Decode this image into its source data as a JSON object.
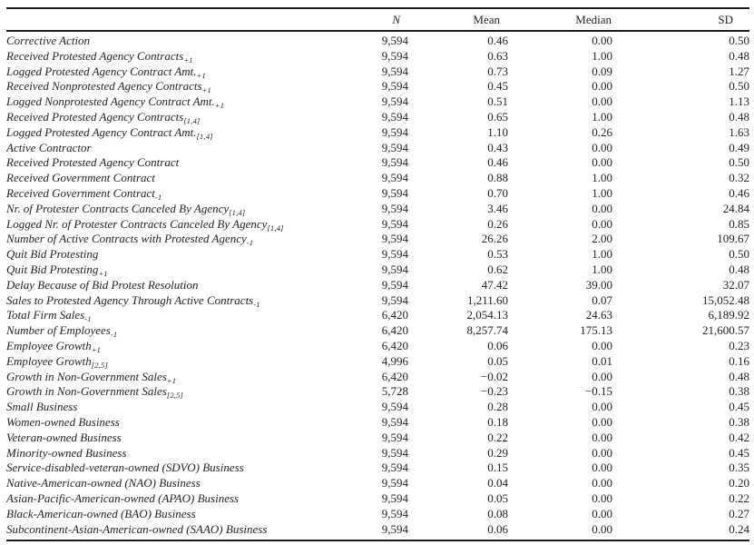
{
  "page": {
    "background": "#ffffff",
    "text_color": "#242424",
    "rule_color": "#1c1c1c"
  },
  "table": {
    "columns": [
      "N",
      "Mean",
      "Median",
      "SD"
    ],
    "rows": [
      {
        "label": "Corrective Action",
        "sub": "",
        "n": "9,594",
        "mean": "0.46",
        "median": "0.00",
        "sd": "0.50"
      },
      {
        "label": "Received Protested Agency Contracts",
        "sub": "+1",
        "n": "9,594",
        "mean": "0.63",
        "median": "1.00",
        "sd": "0.48"
      },
      {
        "label": "Logged Protested Agency Contract Amt.",
        "sub": "+1",
        "n": "9,594",
        "mean": "0.73",
        "median": "0.09",
        "sd": "1.27"
      },
      {
        "label": "Received Nonprotested Agency Contracts",
        "sub": "+1",
        "n": "9,594",
        "mean": "0.45",
        "median": "0.00",
        "sd": "0.50"
      },
      {
        "label": "Logged Nonprotested Agency Contract Amt.",
        "sub": "+1",
        "n": "9,594",
        "mean": "0.51",
        "median": "0.00",
        "sd": "1.13"
      },
      {
        "label": "Received Protested Agency Contracts",
        "sub": "[1,4]",
        "n": "9,594",
        "mean": "0.65",
        "median": "1.00",
        "sd": "0.48"
      },
      {
        "label": "Logged Protested Agency Contract Amt.",
        "sub": "[1,4]",
        "n": "9,594",
        "mean": "1.10",
        "median": "0.26",
        "sd": "1.63"
      },
      {
        "label": "Active Contractor",
        "sub": "",
        "n": "9,594",
        "mean": "0.43",
        "median": "0.00",
        "sd": "0.49"
      },
      {
        "label": "Received Protested Agency Contract",
        "sub": "",
        "n": "9,594",
        "mean": "0.46",
        "median": "0.00",
        "sd": "0.50"
      },
      {
        "label": "Received Government Contract",
        "sub": "",
        "n": "9,594",
        "mean": "0.88",
        "median": "1.00",
        "sd": "0.32"
      },
      {
        "label": "Received Government Contract",
        "sub": "-1",
        "n": "9,594",
        "mean": "0.70",
        "median": "1.00",
        "sd": "0.46"
      },
      {
        "label": "Nr. of Protester Contracts Canceled By Agency",
        "sub": "[1,4]",
        "n": "9,594",
        "mean": "3.46",
        "median": "0.00",
        "sd": "24.84"
      },
      {
        "label": "Logged Nr. of Protester Contracts Canceled By Agency",
        "sub": "[1,4]",
        "n": "9,594",
        "mean": "0.26",
        "median": "0.00",
        "sd": "0.85"
      },
      {
        "label": "Number of Active Contracts with Protested Agency",
        "sub": "-1",
        "n": "9,594",
        "mean": "26.26",
        "median": "2.00",
        "sd": "109.67"
      },
      {
        "label": "Quit Bid Protesting",
        "sub": "",
        "n": "9,594",
        "mean": "0.53",
        "median": "1.00",
        "sd": "0.50"
      },
      {
        "label": "Quit Bid Protesting",
        "sub": "+1",
        "n": "9,594",
        "mean": "0.62",
        "median": "1.00",
        "sd": "0.48"
      },
      {
        "label": "Delay Because of Bid Protest Resolution",
        "sub": "",
        "n": "9,594",
        "mean": "47.42",
        "median": "39.00",
        "sd": "32.07"
      },
      {
        "label": "Sales to Protested Agency Through Active Contracts",
        "sub": "-1",
        "n": "9,594",
        "mean": "1,211.60",
        "median": "0.07",
        "sd": "15,052.48"
      },
      {
        "label": "Total Firm Sales",
        "sub": "-1",
        "n": "6,420",
        "mean": "2,054.13",
        "median": "24.63",
        "sd": "6,189.92"
      },
      {
        "label": "Number of Employees",
        "sub": "-1",
        "n": "6,420",
        "mean": "8,257.74",
        "median": "175.13",
        "sd": "21,600.57"
      },
      {
        "label": "Employee Growth",
        "sub": "+1",
        "n": "6,420",
        "mean": "0.06",
        "median": "0.00",
        "sd": "0.23"
      },
      {
        "label": "Employee Growth",
        "sub": "[2,5]",
        "n": "4,996",
        "mean": "0.05",
        "median": "0.01",
        "sd": "0.16"
      },
      {
        "label": "Growth in Non-Government Sales",
        "sub": "+1",
        "n": "6,420",
        "mean": "−0.02",
        "median": "0.00",
        "sd": "0.48"
      },
      {
        "label": "Growth in Non-Government Sales",
        "sub": "[2,5]",
        "n": "5,728",
        "mean": "−0.23",
        "median": "−0.15",
        "sd": "0.38"
      },
      {
        "label": "Small Business",
        "sub": "",
        "n": "9,594",
        "mean": "0.28",
        "median": "0.00",
        "sd": "0.45"
      },
      {
        "label": "Women-owned Business",
        "sub": "",
        "n": "9,594",
        "mean": "0.18",
        "median": "0.00",
        "sd": "0.38"
      },
      {
        "label": "Veteran-owned Business",
        "sub": "",
        "n": "9,594",
        "mean": "0.22",
        "median": "0.00",
        "sd": "0.42"
      },
      {
        "label": "Minority-owned Business",
        "sub": "",
        "n": "9,594",
        "mean": "0.29",
        "median": "0.00",
        "sd": "0.45"
      },
      {
        "label": "Service-disabled-veteran-owned (SDVO) Business",
        "sub": "",
        "n": "9,594",
        "mean": "0.15",
        "median": "0.00",
        "sd": "0.35"
      },
      {
        "label": "Native-American-owned (NAO) Business",
        "sub": "",
        "n": "9,594",
        "mean": "0.04",
        "median": "0.00",
        "sd": "0.20"
      },
      {
        "label": "Asian-Pacific-American-owned (APAO) Business",
        "sub": "",
        "n": "9,594",
        "mean": "0.05",
        "median": "0.00",
        "sd": "0.22"
      },
      {
        "label": "Black-American-owned (BAO) Business",
        "sub": "",
        "n": "9,594",
        "mean": "0.08",
        "median": "0.00",
        "sd": "0.27"
      },
      {
        "label": "Subcontinent-Asian-American-owned (SAAO) Business",
        "sub": "",
        "n": "9,594",
        "mean": "0.06",
        "median": "0.00",
        "sd": "0.24"
      }
    ]
  }
}
